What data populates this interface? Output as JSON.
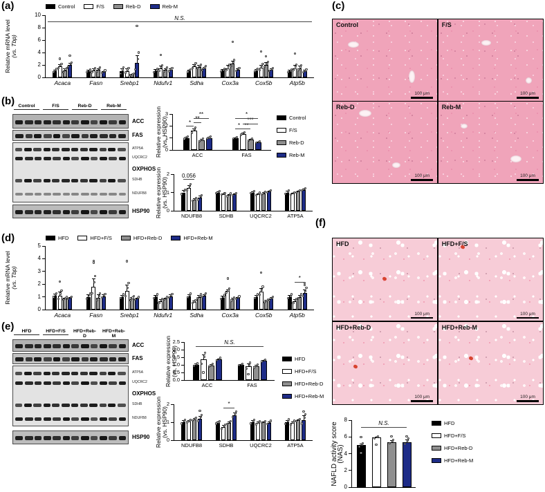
{
  "panels": {
    "a": {
      "label": "(a)"
    },
    "b": {
      "label": "(b)"
    },
    "c": {
      "label": "(c)"
    },
    "d": {
      "label": "(d)"
    },
    "e": {
      "label": "(e)"
    },
    "f": {
      "label": "(f)"
    }
  },
  "colors": {
    "black": "#000000",
    "white": "#ffffff",
    "gray": "#8f8f8f",
    "navy": "#1e2c87"
  },
  "blots": {
    "b": {
      "groups": [
        "Control",
        "F/S",
        "Reb-D",
        "Reb-M"
      ],
      "strips": [
        {
          "type": "single",
          "label": "ACC"
        },
        {
          "type": "single",
          "label": "FAS"
        },
        {
          "type": "multi",
          "rows": [
            {
              "label": "ATP5A"
            },
            {
              "label": "UQCRC2"
            },
            {
              "label": "OXPHOS",
              "heading": true
            },
            {
              "label": "SDHB"
            },
            {
              "label": "NDUFB8",
              "faint": true
            }
          ]
        },
        {
          "type": "single",
          "label": "HSP90"
        }
      ]
    },
    "e": {
      "groups": [
        "HFD",
        "HFD+F/S",
        "HFD+Reb-D",
        "HFD+Reb-M"
      ],
      "strips": [
        {
          "type": "single",
          "label": "ACC"
        },
        {
          "type": "single",
          "label": "FAS"
        },
        {
          "type": "multi",
          "rows": [
            {
              "label": "ATP5A"
            },
            {
              "label": "UQCRC2"
            },
            {
              "label": "OXPHOS",
              "heading": true
            },
            {
              "label": "SDHB"
            },
            {
              "label": "NDUFB8"
            }
          ]
        },
        {
          "type": "single",
          "label": "HSP90"
        }
      ]
    }
  },
  "histology": {
    "c": {
      "tiles": [
        "Control",
        "F/S",
        "Reb-D",
        "Reb-M"
      ],
      "scale_label": "100 μm"
    },
    "f": {
      "tiles": [
        "HFD",
        "HFD+F/S",
        "HFD+Reb-D",
        "HFD+Reb-M"
      ],
      "scale_label": "100 μm"
    }
  },
  "chart_data": [
    {
      "id": "panel_a_mrna",
      "type": "bar",
      "ylabel_line1": "Relative mRNA level",
      "ylabel_line2": "(vs. Tbp)",
      "ylabel2_italic": true,
      "categories": [
        "Acaca",
        "Fasn",
        "Srebp1",
        "Ndufv1",
        "Sdha",
        "Cox3a",
        "Cox5b",
        "Atp5b"
      ],
      "categories_italic": true,
      "ylim": [
        0,
        10
      ],
      "yticks": [
        0,
        2,
        4,
        6,
        8,
        10
      ],
      "ytick_labels": [
        "0",
        "2",
        "4",
        "6",
        "8",
        "10"
      ],
      "series": [
        {
          "name": "Control",
          "color": "black",
          "values": [
            1.0,
            1.0,
            1.0,
            1.05,
            1.05,
            1.1,
            1.1,
            1.0
          ],
          "errors": [
            0.25,
            0.2,
            0.45,
            0.25,
            0.2,
            0.2,
            0.25,
            0.2
          ]
        },
        {
          "name": "F/S",
          "color": "white",
          "values": [
            1.75,
            1.1,
            1.05,
            1.4,
            1.8,
            1.5,
            1.55,
            1.5
          ],
          "errors": [
            0.35,
            0.3,
            0.35,
            0.45,
            0.35,
            0.45,
            0.5,
            0.45
          ]
        },
        {
          "name": "Reb-D",
          "color": "gray",
          "values": [
            1.1,
            1.2,
            0.45,
            1.2,
            1.7,
            2.2,
            2.0,
            1.5
          ],
          "errors": [
            0.3,
            0.3,
            0.15,
            0.3,
            0.3,
            0.45,
            0.4,
            0.35
          ]
        },
        {
          "name": "Reb-M",
          "color": "navy",
          "values": [
            2.0,
            0.85,
            2.3,
            1.2,
            1.4,
            1.25,
            1.2,
            1.0
          ],
          "errors": [
            0.3,
            0.2,
            1.3,
            0.25,
            0.3,
            0.2,
            0.2,
            0.2
          ]
        }
      ],
      "legend": true,
      "annotations": [
        {
          "label": "N.S.",
          "full_width": true,
          "y": 9
        }
      ],
      "outliers": [
        {
          "g": 0,
          "s": 1,
          "y": 3.0
        },
        {
          "g": 0,
          "s": 3,
          "y": 3.5
        },
        {
          "g": 2,
          "s": 3,
          "y": 8.3
        },
        {
          "g": 3,
          "s": 1,
          "y": 3.6
        },
        {
          "g": 5,
          "s": 2,
          "y": 5.7
        },
        {
          "g": 6,
          "s": 1,
          "y": 4.2
        },
        {
          "g": 6,
          "s": 2,
          "y": 3.4
        },
        {
          "g": 7,
          "s": 1,
          "y": 3.8
        }
      ]
    },
    {
      "id": "panel_b_accfas",
      "type": "bar",
      "ylabel_line1": "Relative expression",
      "ylabel_line2": "(vs. HSP90)",
      "categories": [
        "ACC",
        "FAS"
      ],
      "ylim": [
        0,
        3
      ],
      "yticks": [
        0,
        1,
        2,
        3
      ],
      "ytick_labels": [
        "0",
        "1",
        "2",
        "3"
      ],
      "series": [
        {
          "name": "Control",
          "color": "black",
          "values": [
            1.0,
            1.0
          ],
          "errors": [
            0.1,
            0.05
          ]
        },
        {
          "name": "F/S",
          "color": "white",
          "values": [
            1.6,
            1.35
          ],
          "errors": [
            0.2,
            0.1
          ]
        },
        {
          "name": "Reb-D",
          "color": "gray",
          "values": [
            0.8,
            0.85
          ],
          "errors": [
            0.1,
            0.08
          ]
        },
        {
          "name": "Reb-M",
          "color": "navy",
          "values": [
            1.0,
            0.65
          ],
          "errors": [
            0.08,
            0.06
          ]
        }
      ],
      "legend": true,
      "annotations": [
        {
          "label": "*",
          "g1": 0,
          "s1": 0,
          "g2": 0,
          "s2": 1,
          "y": 2.0
        },
        {
          "label": "**",
          "g1": 0,
          "s1": 1,
          "g2": 0,
          "s2": 2,
          "y": 2.32
        },
        {
          "label": "**",
          "g1": 0,
          "s1": 1,
          "g2": 0,
          "s2": 3,
          "y": 2.66
        },
        {
          "label": "*",
          "g1": 1,
          "s1": 0,
          "g2": 1,
          "s2": 1,
          "y": 1.78
        },
        {
          "label": "**",
          "g1": 1,
          "s1": 1,
          "g2": 1,
          "s2": 2,
          "y": 1.78
        },
        {
          "label": "***",
          "g1": 1,
          "s1": 1,
          "g2": 1,
          "s2": 3,
          "y": 2.2
        },
        {
          "label": "*",
          "g1": 1,
          "s1": 0,
          "g2": 1,
          "s2": 3,
          "y": 2.66
        }
      ]
    },
    {
      "id": "panel_b_oxphos",
      "type": "bar",
      "ylabel_line1": "Relative expression",
      "ylabel_line2": "(vs. HSP90)",
      "categories": [
        "NDUFB8",
        "SDHB",
        "UQCRC2",
        "ATP5A"
      ],
      "ylim": [
        0,
        2
      ],
      "yticks": [
        0,
        1,
        2
      ],
      "ytick_labels": [
        "0",
        "1",
        "2"
      ],
      "series": [
        {
          "name": "Control",
          "color": "black",
          "values": [
            1.0,
            1.0,
            1.0,
            1.0
          ],
          "errors": [
            0.12,
            0.05,
            0.05,
            0.08
          ]
        },
        {
          "name": "F/S",
          "color": "white",
          "values": [
            1.25,
            0.92,
            0.9,
            0.93
          ],
          "errors": [
            0.15,
            0.04,
            0.06,
            0.05
          ]
        },
        {
          "name": "Reb-D",
          "color": "gray",
          "values": [
            0.6,
            0.85,
            0.95,
            1.05
          ],
          "errors": [
            0.07,
            0.07,
            0.07,
            0.05
          ]
        },
        {
          "name": "Reb-M",
          "color": "navy",
          "values": [
            0.7,
            0.9,
            1.05,
            1.15
          ],
          "errors": [
            0.12,
            0.05,
            0.05,
            0.06
          ]
        }
      ],
      "annotations": [
        {
          "label": "0.056",
          "g1": 0,
          "s1": 0,
          "g2": 0,
          "s2": 2,
          "y": 1.72
        }
      ]
    },
    {
      "id": "panel_d_mrna",
      "type": "bar",
      "ylabel_line1": "Relative mRNA level",
      "ylabel_line2": "(vs. Tbp)",
      "ylabel2_italic": true,
      "categories": [
        "Acaca",
        "Fasn",
        "Srebp1",
        "Ndufv1",
        "Sdha",
        "Cox3a",
        "Cox5b",
        "Atp5b"
      ],
      "categories_italic": true,
      "ylim": [
        0,
        5
      ],
      "yticks": [
        0,
        1,
        2,
        3,
        4,
        5
      ],
      "ytick_labels": [
        "0",
        "1",
        "2",
        "3",
        "4",
        "5"
      ],
      "series": [
        {
          "name": "HFD",
          "color": "black",
          "values": [
            1.1,
            1.0,
            1.0,
            1.0,
            1.05,
            0.95,
            1.0,
            1.0
          ],
          "errors": [
            0.15,
            0.2,
            0.15,
            0.15,
            0.15,
            0.15,
            0.15,
            0.15
          ]
        },
        {
          "name": "HFD+F/S",
          "color": "white",
          "values": [
            1.1,
            1.8,
            1.45,
            0.65,
            0.6,
            1.45,
            1.4,
            0.65
          ],
          "errors": [
            0.3,
            0.65,
            0.5,
            0.15,
            0.1,
            0.15,
            0.3,
            0.15
          ]
        },
        {
          "name": "HFD+Reb-D",
          "color": "gray",
          "values": [
            0.85,
            0.95,
            0.85,
            0.85,
            1.0,
            0.8,
            0.65,
            1.0
          ],
          "errors": [
            0.1,
            0.25,
            0.15,
            0.1,
            0.15,
            0.12,
            0.1,
            0.15
          ]
        },
        {
          "name": "HFD+Reb-M",
          "color": "navy",
          "values": [
            0.9,
            1.05,
            0.85,
            1.05,
            1.1,
            0.9,
            0.85,
            1.3
          ],
          "errors": [
            0.08,
            0.12,
            0.1,
            0.12,
            0.12,
            0.1,
            0.12,
            0.3
          ]
        }
      ],
      "legend": true,
      "annotations": [
        {
          "label": "*",
          "g1": 7,
          "s1": 1,
          "g2": 7,
          "s2": 3,
          "y": 2.2
        }
      ],
      "outliers": [
        {
          "g": 0,
          "s": 1,
          "y": 2.2
        },
        {
          "g": 1,
          "s": 1,
          "y": 3.85
        },
        {
          "g": 1,
          "s": 1,
          "y": 3.7
        },
        {
          "g": 2,
          "s": 1,
          "y": 3.8
        },
        {
          "g": 5,
          "s": 1,
          "y": 2.45
        },
        {
          "g": 6,
          "s": 1,
          "y": 2.9
        },
        {
          "g": 7,
          "s": 3,
          "y": 2.1
        },
        {
          "g": 7,
          "s": 3,
          "y": 1.95
        }
      ]
    },
    {
      "id": "panel_e_accfas",
      "type": "bar",
      "ylabel_line1": "Relative expression",
      "ylabel_line2": "(vs. HSP90)",
      "categories": [
        "ACC",
        "FAS"
      ],
      "ylim": [
        0,
        2.5
      ],
      "yticks": [
        0,
        0.5,
        1,
        1.5,
        2,
        2.5
      ],
      "ytick_labels": [
        "0.0",
        "0.5",
        "1.0",
        "1.5",
        "2.0",
        "2.5"
      ],
      "series": [
        {
          "name": "HFD",
          "color": "black",
          "values": [
            1.0,
            1.0
          ],
          "errors": [
            0.07,
            0.04
          ]
        },
        {
          "name": "HFD+F/S",
          "color": "white",
          "values": [
            1.35,
            0.9
          ],
          "errors": [
            0.35,
            0.18
          ]
        },
        {
          "name": "HFD+Reb-D",
          "color": "gray",
          "values": [
            0.95,
            0.9
          ],
          "errors": [
            0.08,
            0.1
          ]
        },
        {
          "name": "HFD+Reb-M",
          "color": "navy",
          "values": [
            1.35,
            1.27
          ],
          "errors": [
            0.08,
            0.05
          ]
        }
      ],
      "legend": true,
      "annotations": [
        {
          "label": "N.S.",
          "g1": 0,
          "s1": 0,
          "g2": 1,
          "s2": 3,
          "y": 2.25
        }
      ],
      "outliers": [
        {
          "g": 0,
          "s": 1,
          "y": 0.5
        },
        {
          "g": 1,
          "s": 1,
          "y": 0.37
        }
      ]
    },
    {
      "id": "panel_e_oxphos",
      "type": "bar",
      "ylabel_line1": "Relative expression",
      "ylabel_line2": "(vs. HSP90)",
      "categories": [
        "NDUFB8",
        "SDHB",
        "UQCRC2",
        "ATP5A"
      ],
      "ylim": [
        0,
        2
      ],
      "yticks": [
        0,
        1,
        2
      ],
      "ytick_labels": [
        "0",
        "1",
        "2"
      ],
      "series": [
        {
          "name": "HFD",
          "color": "black",
          "values": [
            1.0,
            0.97,
            1.0,
            1.0
          ],
          "errors": [
            0.1,
            0.06,
            0.1,
            0.12
          ]
        },
        {
          "name": "HFD+F/S",
          "color": "white",
          "values": [
            1.05,
            0.72,
            0.95,
            0.95
          ],
          "errors": [
            0.06,
            0.12,
            0.08,
            0.1
          ]
        },
        {
          "name": "HFD+Reb-D",
          "color": "gray",
          "values": [
            1.15,
            0.97,
            1.0,
            1.1
          ],
          "errors": [
            0.08,
            0.07,
            0.04,
            0.06
          ]
        },
        {
          "name": "HFD+Reb-M",
          "color": "navy",
          "values": [
            1.2,
            1.4,
            0.97,
            1.12
          ],
          "errors": [
            0.15,
            0.15,
            0.08,
            0.25
          ]
        }
      ],
      "annotations": [
        {
          "label": "*",
          "g1": 1,
          "s1": 1,
          "g2": 1,
          "s2": 3,
          "y": 1.82
        }
      ],
      "outliers": [
        {
          "g": 0,
          "s": 3,
          "y": 1.62
        },
        {
          "g": 3,
          "s": 3,
          "y": 1.6
        }
      ]
    },
    {
      "id": "panel_f_nas",
      "type": "bar",
      "ylabel_line1": "NAFLD activity score",
      "ylabel_line2": "(NAS)",
      "categories": [
        ""
      ],
      "ylim": [
        0,
        8
      ],
      "yticks": [
        0,
        2,
        4,
        6,
        8
      ],
      "ytick_labels": [
        "0",
        "2",
        "4",
        "6",
        "8"
      ],
      "series": [
        {
          "name": "HFD",
          "color": "black",
          "values": [
            5.0
          ],
          "errors": [
            0.2
          ]
        },
        {
          "name": "HFD+F/S",
          "color": "white",
          "values": [
            5.9
          ],
          "errors": [
            0.1
          ]
        },
        {
          "name": "HFD+Reb-D",
          "color": "gray",
          "values": [
            5.4
          ],
          "errors": [
            0.2
          ]
        },
        {
          "name": "HFD+Reb-M",
          "color": "navy",
          "values": [
            5.4
          ],
          "errors": [
            0.3
          ]
        }
      ],
      "legend": true,
      "annotations": [
        {
          "label": "N.S.",
          "g1": 0,
          "s1": 0,
          "g2": 0,
          "s2": 3,
          "y": 7.2
        }
      ],
      "outliers": [
        {
          "g": 0,
          "s": 0,
          "y": 6.0
        },
        {
          "g": 0,
          "s": 0,
          "y": 4.05
        },
        {
          "g": 0,
          "s": 1,
          "y": 5.05
        },
        {
          "g": 0,
          "s": 2,
          "y": 6.05
        },
        {
          "g": 0,
          "s": 3,
          "y": 6.05
        }
      ]
    }
  ]
}
